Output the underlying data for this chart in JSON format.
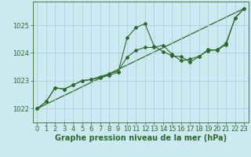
{
  "bg_color": "#cce8f0",
  "grid_color": "#aad0dc",
  "line_color": "#2d6b2d",
  "marker_color": "#2d6b2d",
  "title": "Graphe pression niveau de la mer (hPa)",
  "title_fontsize": 7,
  "tick_fontsize": 6,
  "xlim": [
    -0.5,
    23.5
  ],
  "ylim": [
    1021.5,
    1025.85
  ],
  "yticks": [
    1022,
    1023,
    1024,
    1025
  ],
  "xticks": [
    0,
    1,
    2,
    3,
    4,
    5,
    6,
    7,
    8,
    9,
    10,
    11,
    12,
    13,
    14,
    15,
    16,
    17,
    18,
    19,
    20,
    21,
    22,
    23
  ],
  "series1": {
    "x": [
      0,
      1,
      2,
      3,
      4,
      5,
      6,
      7,
      8,
      9,
      10,
      11,
      12,
      13,
      14,
      15,
      16,
      17,
      18,
      19,
      20,
      21,
      22,
      23
    ],
    "y": [
      1022.0,
      1022.25,
      1022.75,
      1022.7,
      1022.85,
      1023.0,
      1023.05,
      1023.1,
      1023.2,
      1023.3,
      1024.55,
      1024.92,
      1025.05,
      1024.25,
      1024.05,
      1023.9,
      1023.87,
      1023.67,
      1023.87,
      1024.12,
      1024.1,
      1024.3,
      1025.25,
      1025.6
    ]
  },
  "series2": {
    "x": [
      0,
      1,
      2,
      3,
      4,
      5,
      6,
      7,
      8,
      9,
      10,
      11,
      12,
      13,
      14,
      15,
      16,
      17,
      18,
      19,
      20,
      21,
      22,
      23
    ],
    "y": [
      1022.0,
      1022.25,
      1022.75,
      1022.7,
      1022.85,
      1023.0,
      1023.05,
      1023.15,
      1023.25,
      1023.35,
      1023.85,
      1024.1,
      1024.2,
      1024.2,
      1024.28,
      1023.95,
      1023.72,
      1023.78,
      1023.88,
      1024.08,
      1024.12,
      1024.35,
      1025.25,
      1025.6
    ]
  },
  "series3": {
    "x": [
      0,
      23
    ],
    "y": [
      1022.0,
      1025.6
    ]
  }
}
